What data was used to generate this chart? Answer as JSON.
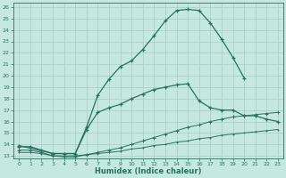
{
  "xlabel": "Humidex (Indice chaleur)",
  "ylabel": "",
  "bg_color": "#c5e8e0",
  "line_color": "#2a7060",
  "grid_color": "#a8ccc4",
  "xlim": [
    -0.5,
    23.5
  ],
  "ylim": [
    12.8,
    26.4
  ],
  "xticks": [
    0,
    1,
    2,
    3,
    4,
    5,
    6,
    7,
    8,
    9,
    10,
    11,
    12,
    13,
    14,
    15,
    16,
    17,
    18,
    19,
    20,
    21,
    22,
    23
  ],
  "yticks": [
    13,
    14,
    15,
    16,
    17,
    18,
    19,
    20,
    21,
    22,
    23,
    24,
    25,
    26
  ],
  "line1_x": [
    0,
    1,
    2,
    3,
    4,
    5,
    6,
    7,
    8,
    9,
    10,
    11,
    12,
    13,
    14,
    15,
    16,
    17,
    18,
    19,
    20
  ],
  "line1_y": [
    13.8,
    13.8,
    13.5,
    13.2,
    13.2,
    13.2,
    15.5,
    18.3,
    19.7,
    20.8,
    21.3,
    22.3,
    23.5,
    24.8,
    25.7,
    25.8,
    25.7,
    24.6,
    23.2,
    21.6,
    19.8
  ],
  "line2_x": [
    0,
    3,
    5,
    6,
    7,
    8,
    9,
    10,
    11,
    12,
    13,
    14,
    15,
    16,
    17,
    18,
    19,
    20,
    21,
    22,
    23
  ],
  "line2_y": [
    13.9,
    13.2,
    13.2,
    15.3,
    16.8,
    17.2,
    17.5,
    18.0,
    18.4,
    18.8,
    19.0,
    19.2,
    19.3,
    17.8,
    17.2,
    17.0,
    17.0,
    16.5,
    16.5,
    16.2,
    16.0
  ],
  "line3_x": [
    0,
    1,
    2,
    3,
    4,
    5,
    6,
    7,
    8,
    9,
    10,
    11,
    12,
    13,
    14,
    15,
    16,
    17,
    18,
    19,
    20,
    21,
    22,
    23
  ],
  "line3_y": [
    13.5,
    13.5,
    13.3,
    13.0,
    12.9,
    12.9,
    13.1,
    13.3,
    13.5,
    13.7,
    14.0,
    14.3,
    14.6,
    14.9,
    15.2,
    15.5,
    15.7,
    16.0,
    16.2,
    16.4,
    16.5,
    16.6,
    16.7,
    16.8
  ],
  "line4_x": [
    0,
    1,
    2,
    3,
    4,
    5,
    6,
    7,
    8,
    9,
    10,
    11,
    12,
    13,
    14,
    15,
    16,
    17,
    18,
    19,
    20,
    21,
    22,
    23
  ],
  "line4_y": [
    13.3,
    13.3,
    13.2,
    13.0,
    13.0,
    13.0,
    13.1,
    13.2,
    13.3,
    13.4,
    13.6,
    13.7,
    13.9,
    14.0,
    14.2,
    14.3,
    14.5,
    14.6,
    14.8,
    14.9,
    15.0,
    15.1,
    15.2,
    15.3
  ]
}
